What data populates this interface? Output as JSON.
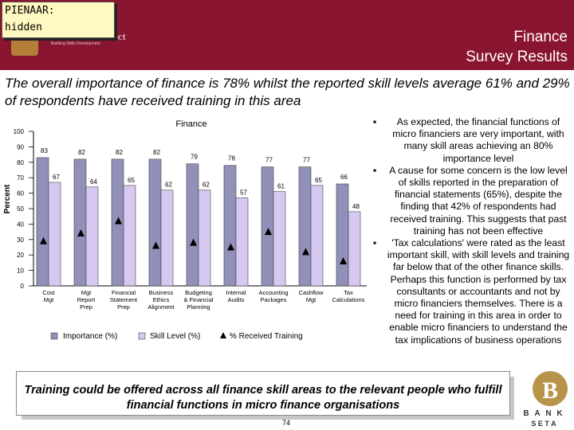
{
  "note": {
    "line1": "PIENAAR:",
    "line2": "hidden"
  },
  "header": {
    "title_line1": "Finance",
    "title_line2": "Survey Results"
  },
  "logo": {
    "wordmark": "ect",
    "tagline": "Building Skills Development"
  },
  "subtitle": "The overall importance of finance is 78% whilst the reported skill levels average 61% and 29% of respondents have received training in this area",
  "chart_data": {
    "type": "bar",
    "title": "Finance",
    "ylabel": "Percent",
    "xlabel": "",
    "ylim": [
      0,
      100
    ],
    "yticks": [
      0,
      10,
      20,
      30,
      40,
      50,
      60,
      70,
      80,
      90,
      100
    ],
    "categories": [
      [
        "Cost",
        "Mgt"
      ],
      [
        "Mgt",
        "Report",
        "Prep"
      ],
      [
        "Financial",
        "Statement",
        "Prep"
      ],
      [
        "Business",
        "Ethics",
        "Alignment"
      ],
      [
        "Budgeting",
        "& Financial",
        "Planning"
      ],
      [
        "Internal",
        "Audits"
      ],
      [
        "Accounting",
        "Packages"
      ],
      [
        "Cashflow",
        "Mgt"
      ],
      [
        "Tax",
        "Calculations"
      ]
    ],
    "series": [
      {
        "name": "Importance (%)",
        "kind": "bar",
        "color": "#9090b8",
        "values": [
          83,
          82,
          82,
          82,
          79,
          78,
          77,
          77,
          66
        ]
      },
      {
        "name": "Skill Level (%)",
        "kind": "bar",
        "color": "#d6c8f0",
        "values": [
          67,
          64,
          65,
          62,
          62,
          57,
          61,
          65,
          48
        ]
      },
      {
        "name": "% Received Training",
        "kind": "marker",
        "color": "#000000",
        "values": [
          29,
          34,
          42,
          26,
          28,
          25,
          35,
          22,
          16
        ]
      }
    ],
    "legend": {
      "position": "bottom"
    }
  },
  "bullets": [
    "As expected, the financial functions of micro financiers are very important, with many skill areas achieving an 80% importance level",
    "A cause for some concern is the low level of skills reported in the preparation of financial statements (65%), despite the finding that 42% of respondents had received training. This suggests that past training has not been effective",
    "'Tax calculations' were rated as the least important skill, with skill levels and training far below that of the other finance skills. Perhaps this function is performed by tax consultants or accountants and not by micro financiers themselves. There is a need for training in this area in order to enable micro financiers to understand the tax implications of business operations"
  ],
  "bullet_symbol": "▪",
  "conclusion": "Training could be offered across all finance skill areas to the relevant people who fulfill financial functions in micro finance organisations",
  "page_number": "74",
  "bank_logo": {
    "letters": [
      "B",
      "A",
      "N",
      "K"
    ],
    "subtext": "S E T A"
  },
  "colors": {
    "header": "#8a1530",
    "note_bg": "#fff8c0"
  }
}
